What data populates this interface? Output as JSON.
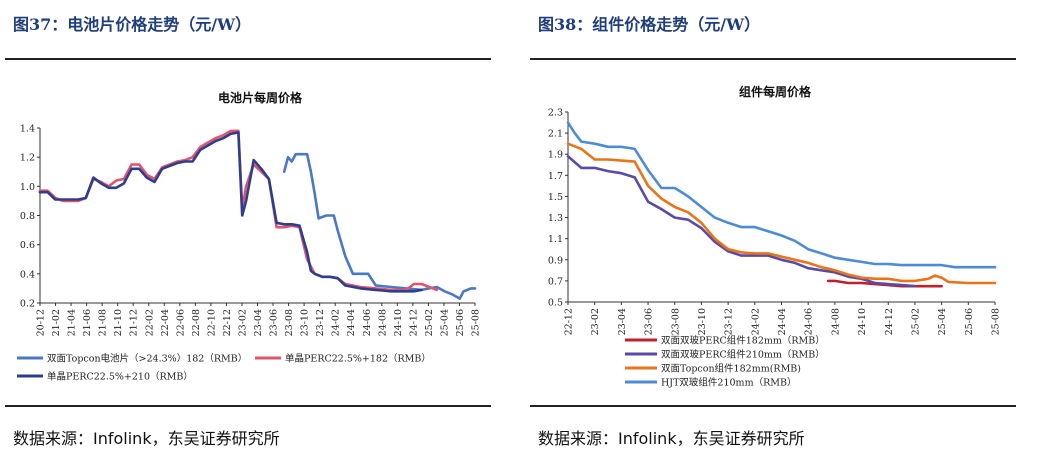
{
  "left": {
    "figure_title": "图37：电池片价格走势（元/W）",
    "source": "数据来源：Infolink，东吴证券研究所"
  },
  "right": {
    "figure_title": "图38：组件价格走势（元/W）",
    "source": "数据来源：Infolink，东吴证券研究所"
  },
  "chart_data": [
    {
      "type": "line",
      "title": "电池片每周价格",
      "ylim": [
        0.2,
        1.4
      ],
      "yticks": [
        "0.2",
        "0.4",
        "0.6",
        "0.8",
        "1.0",
        "1.2",
        "1.4"
      ],
      "x_ticks": [
        "20-12",
        "21-02",
        "21-04",
        "21-06",
        "21-08",
        "21-10",
        "21-12",
        "22-02",
        "22-04",
        "22-06",
        "22-08",
        "22-10",
        "22-12",
        "23-02",
        "23-04",
        "23-06",
        "23-08",
        "23-10",
        "23-12",
        "24-02",
        "24-04",
        "24-06",
        "24-08",
        "24-10",
        "24-12",
        "25-02",
        "25-04",
        "25-06",
        "25-08"
      ],
      "x_range": [
        0,
        57
      ],
      "legend_position": "bottom",
      "series": [
        {
          "name": "双面Topcon电池片（>24.3%）182（RMB）",
          "color": "#4a78c4",
          "points": [
            [
              32,
              1.1
            ],
            [
              32.5,
              1.2
            ],
            [
              33,
              1.17
            ],
            [
              33.5,
              1.22
            ],
            [
              35,
              1.22
            ],
            [
              35.5,
              1.1
            ],
            [
              36,
              0.95
            ],
            [
              36.5,
              0.78
            ],
            [
              37.5,
              0.8
            ],
            [
              38.5,
              0.8
            ],
            [
              39,
              0.7
            ],
            [
              40,
              0.52
            ],
            [
              41,
              0.4
            ],
            [
              43,
              0.4
            ],
            [
              44,
              0.32
            ],
            [
              46,
              0.31
            ],
            [
              48,
              0.3
            ],
            [
              50,
              0.29
            ],
            [
              51,
              0.3
            ],
            [
              52,
              0.31
            ],
            [
              53,
              0.28
            ],
            [
              54,
              0.26
            ],
            [
              55,
              0.23
            ],
            [
              55.5,
              0.28
            ],
            [
              56.5,
              0.3
            ],
            [
              57,
              0.3
            ]
          ]
        },
        {
          "name": "单晶PERC22.5%+182（RMB）",
          "color": "#e0546e",
          "points": [
            [
              0,
              0.97
            ],
            [
              1,
              0.97
            ],
            [
              2,
              0.92
            ],
            [
              3,
              0.9
            ],
            [
              4,
              0.9
            ],
            [
              5,
              0.9
            ],
            [
              6,
              0.92
            ],
            [
              7,
              1.05
            ],
            [
              8,
              1.03
            ],
            [
              9,
              1.0
            ],
            [
              10,
              1.04
            ],
            [
              11,
              1.05
            ],
            [
              12,
              1.15
            ],
            [
              13,
              1.15
            ],
            [
              14,
              1.08
            ],
            [
              15,
              1.05
            ],
            [
              16,
              1.13
            ],
            [
              17,
              1.15
            ],
            [
              18,
              1.17
            ],
            [
              19,
              1.18
            ],
            [
              20,
              1.2
            ],
            [
              21,
              1.27
            ],
            [
              22,
              1.3
            ],
            [
              23,
              1.33
            ],
            [
              24,
              1.35
            ],
            [
              25,
              1.38
            ],
            [
              26,
              1.38
            ],
            [
              26.5,
              0.85
            ],
            [
              27,
              1.0
            ],
            [
              28,
              1.15
            ],
            [
              29,
              1.1
            ],
            [
              30,
              1.05
            ],
            [
              31,
              0.72
            ],
            [
              32,
              0.72
            ],
            [
              33,
              0.73
            ],
            [
              34,
              0.72
            ],
            [
              35,
              0.5
            ],
            [
              36,
              0.4
            ],
            [
              37,
              0.38
            ],
            [
              38,
              0.38
            ],
            [
              39,
              0.37
            ],
            [
              40,
              0.33
            ],
            [
              42,
              0.31
            ],
            [
              44,
              0.3
            ],
            [
              46,
              0.29
            ],
            [
              48,
              0.29
            ],
            [
              49,
              0.33
            ],
            [
              50,
              0.33
            ],
            [
              51,
              0.31
            ],
            [
              52,
              0.29
            ]
          ]
        },
        {
          "name": "单晶PERC22.5%+210（RMB）",
          "color": "#2c3e8c",
          "points": [
            [
              0,
              0.96
            ],
            [
              1,
              0.96
            ],
            [
              2,
              0.91
            ],
            [
              3,
              0.91
            ],
            [
              4,
              0.91
            ],
            [
              5,
              0.91
            ],
            [
              6,
              0.92
            ],
            [
              7,
              1.06
            ],
            [
              8,
              1.02
            ],
            [
              9,
              0.99
            ],
            [
              10,
              0.99
            ],
            [
              11,
              1.02
            ],
            [
              12,
              1.12
            ],
            [
              13,
              1.12
            ],
            [
              14,
              1.06
            ],
            [
              15,
              1.03
            ],
            [
              16,
              1.12
            ],
            [
              17,
              1.14
            ],
            [
              18,
              1.16
            ],
            [
              19,
              1.17
            ],
            [
              20,
              1.17
            ],
            [
              21,
              1.25
            ],
            [
              22,
              1.28
            ],
            [
              23,
              1.31
            ],
            [
              24,
              1.33
            ],
            [
              25,
              1.36
            ],
            [
              26,
              1.37
            ],
            [
              26.5,
              0.8
            ],
            [
              27,
              0.9
            ],
            [
              28,
              1.18
            ],
            [
              29,
              1.12
            ],
            [
              30,
              1.05
            ],
            [
              31,
              0.75
            ],
            [
              32,
              0.74
            ],
            [
              33,
              0.74
            ],
            [
              34,
              0.73
            ],
            [
              35,
              0.55
            ],
            [
              35.5,
              0.42
            ],
            [
              36,
              0.4
            ],
            [
              37,
              0.38
            ],
            [
              38,
              0.38
            ],
            [
              39,
              0.37
            ],
            [
              40,
              0.32
            ],
            [
              42,
              0.3
            ],
            [
              44,
              0.29
            ],
            [
              46,
              0.28
            ],
            [
              48,
              0.28
            ],
            [
              49,
              0.28
            ],
            [
              50,
              0.29
            ]
          ]
        }
      ]
    },
    {
      "type": "line",
      "title": "组件每周价格",
      "ylim": [
        0.5,
        2.3
      ],
      "yticks": [
        "0.5",
        "0.7",
        "0.9",
        "1.1",
        "1.3",
        "1.5",
        "1.7",
        "1.9",
        "2.1",
        "2.3"
      ],
      "x_ticks": [
        "22-12",
        "23-02",
        "23-04",
        "23-06",
        "23-08",
        "23-10",
        "23-12",
        "24-02",
        "24-04",
        "24-06",
        "24-08",
        "24-10",
        "24-12",
        "25-02",
        "25-04",
        "25-06",
        "25-08"
      ],
      "x_range": [
        0,
        32
      ],
      "legend_position": "bottom-left",
      "series": [
        {
          "name": "双面双玻PERC组件182mm（RMB）",
          "color": "#c0202a",
          "points": [
            [
              19.5,
              0.7
            ],
            [
              20,
              0.7
            ],
            [
              21,
              0.68
            ],
            [
              22,
              0.68
            ],
            [
              23,
              0.67
            ],
            [
              24,
              0.66
            ],
            [
              25,
              0.65
            ],
            [
              26,
              0.65
            ],
            [
              27,
              0.65
            ],
            [
              28,
              0.65
            ]
          ]
        },
        {
          "name": "双面双玻PERC组件210mm（RMB）",
          "color": "#5a4aa8",
          "points": [
            [
              0,
              1.88
            ],
            [
              1,
              1.77
            ],
            [
              2,
              1.77
            ],
            [
              3,
              1.74
            ],
            [
              4,
              1.72
            ],
            [
              5,
              1.68
            ],
            [
              6,
              1.45
            ],
            [
              7,
              1.38
            ],
            [
              8,
              1.3
            ],
            [
              9,
              1.28
            ],
            [
              10,
              1.2
            ],
            [
              11,
              1.07
            ],
            [
              12,
              0.98
            ],
            [
              13,
              0.94
            ],
            [
              14,
              0.94
            ],
            [
              15,
              0.94
            ],
            [
              16,
              0.9
            ],
            [
              17,
              0.87
            ],
            [
              18,
              0.82
            ],
            [
              19,
              0.8
            ],
            [
              20,
              0.78
            ],
            [
              21,
              0.74
            ],
            [
              22,
              0.72
            ],
            [
              23,
              0.68
            ],
            [
              24,
              0.67
            ],
            [
              25,
              0.66
            ],
            [
              26,
              0.65
            ]
          ]
        },
        {
          "name": "双面Topcon组件182mm(RMB)",
          "color": "#e8751a",
          "points": [
            [
              0,
              2.0
            ],
            [
              1,
              1.95
            ],
            [
              2,
              1.85
            ],
            [
              3,
              1.85
            ],
            [
              4,
              1.84
            ],
            [
              5,
              1.83
            ],
            [
              6,
              1.6
            ],
            [
              7,
              1.48
            ],
            [
              8,
              1.4
            ],
            [
              9,
              1.35
            ],
            [
              10,
              1.25
            ],
            [
              11,
              1.1
            ],
            [
              12,
              1.0
            ],
            [
              13,
              0.97
            ],
            [
              14,
              0.96
            ],
            [
              15,
              0.96
            ],
            [
              16,
              0.93
            ],
            [
              17,
              0.9
            ],
            [
              18,
              0.87
            ],
            [
              19,
              0.83
            ],
            [
              20,
              0.8
            ],
            [
              21,
              0.76
            ],
            [
              22,
              0.73
            ],
            [
              23,
              0.72
            ],
            [
              24,
              0.72
            ],
            [
              25,
              0.7
            ],
            [
              26,
              0.7
            ],
            [
              27,
              0.72
            ],
            [
              27.5,
              0.75
            ],
            [
              28,
              0.73
            ],
            [
              28.5,
              0.69
            ],
            [
              30,
              0.68
            ],
            [
              31,
              0.68
            ],
            [
              32,
              0.68
            ]
          ]
        },
        {
          "name": "HJT双玻组件210mm（RMB）",
          "color": "#4c8cd6",
          "points": [
            [
              0,
              2.2
            ],
            [
              0.5,
              2.1
            ],
            [
              1,
              2.02
            ],
            [
              2,
              2.0
            ],
            [
              3,
              1.97
            ],
            [
              4,
              1.97
            ],
            [
              5,
              1.95
            ],
            [
              6,
              1.75
            ],
            [
              7,
              1.58
            ],
            [
              8,
              1.58
            ],
            [
              9,
              1.5
            ],
            [
              10,
              1.4
            ],
            [
              11,
              1.3
            ],
            [
              12,
              1.25
            ],
            [
              13,
              1.21
            ],
            [
              14,
              1.21
            ],
            [
              15,
              1.17
            ],
            [
              16,
              1.13
            ],
            [
              17,
              1.08
            ],
            [
              18,
              1.0
            ],
            [
              19,
              0.96
            ],
            [
              20,
              0.92
            ],
            [
              21,
              0.9
            ],
            [
              22,
              0.88
            ],
            [
              23,
              0.86
            ],
            [
              24,
              0.86
            ],
            [
              25,
              0.85
            ],
            [
              26,
              0.85
            ],
            [
              27,
              0.85
            ],
            [
              28,
              0.85
            ],
            [
              29,
              0.83
            ],
            [
              30,
              0.83
            ],
            [
              31,
              0.83
            ],
            [
              32,
              0.83
            ]
          ]
        }
      ]
    }
  ]
}
